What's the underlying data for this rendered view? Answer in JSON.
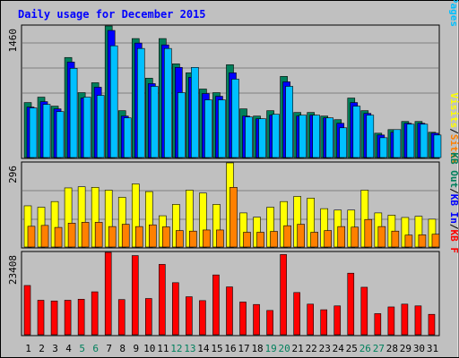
{
  "chart_data": {
    "type": "bar",
    "title": "Daily usage for December 2015",
    "days": [
      "1",
      "2",
      "3",
      "4",
      "5",
      "6",
      "7",
      "8",
      "9",
      "10",
      "11",
      "12",
      "13",
      "14",
      "15",
      "16",
      "17",
      "18",
      "19",
      "20",
      "21",
      "22",
      "23",
      "24",
      "25",
      "26",
      "27",
      "28",
      "29",
      "30",
      "31"
    ],
    "weekend_days": [
      "5",
      "6",
      "12",
      "13",
      "19",
      "20",
      "26",
      "27"
    ],
    "panels": {
      "requests": {
        "ymax_label": "1460",
        "ymax": 1460,
        "legend": [
          "Pages",
          "Files",
          "Hits"
        ],
        "separator": "/",
        "colors": {
          "Hits": "#00805c",
          "Files": "#0000ff",
          "Pages": "#00c0ff"
        },
        "series": {
          "Hits": [
            610,
            670,
            570,
            1110,
            720,
            830,
            1460,
            520,
            1320,
            880,
            1320,
            1040,
            940,
            760,
            720,
            1030,
            540,
            460,
            520,
            900,
            500,
            500,
            460,
            420,
            660,
            520,
            270,
            310,
            400,
            400,
            280
          ],
          "Files": [
            560,
            620,
            540,
            1060,
            660,
            780,
            1410,
            460,
            1270,
            820,
            1250,
            1000,
            890,
            710,
            680,
            940,
            460,
            430,
            470,
            840,
            460,
            470,
            440,
            380,
            610,
            490,
            250,
            280,
            380,
            380,
            270
          ],
          "Pages": [
            550,
            590,
            510,
            990,
            670,
            690,
            1240,
            440,
            1210,
            790,
            1210,
            720,
            1000,
            640,
            640,
            870,
            450,
            430,
            480,
            790,
            470,
            470,
            440,
            330,
            570,
            470,
            220,
            310,
            370,
            370,
            250
          ]
        }
      },
      "sites": {
        "ymax_label": "296",
        "ymax": 296,
        "legend": [
          "Sites",
          "Visits"
        ],
        "separator": "/",
        "colors": {
          "Visits": "#ffff00",
          "Sites": "#ff8000"
        },
        "series": {
          "Visits": [
            145,
            140,
            160,
            208,
            212,
            210,
            200,
            175,
            222,
            195,
            110,
            150,
            200,
            190,
            150,
            296,
            120,
            105,
            140,
            160,
            178,
            172,
            135,
            130,
            130,
            200,
            120,
            112,
            104,
            108,
            98
          ],
          "Sites": [
            73,
            76,
            69,
            84,
            87,
            87,
            72,
            80,
            72,
            78,
            71,
            58,
            56,
            60,
            60,
            210,
            52,
            52,
            55,
            75,
            80,
            52,
            58,
            72,
            70,
            97,
            72,
            56,
            42,
            43,
            45
          ]
        }
      },
      "kbytes": {
        "ymax_label": "23408",
        "ymax": 23408,
        "legend": [
          "KB F",
          "KB In",
          "KB Out"
        ],
        "separator": "/",
        "colors": {
          "KB F": "#ff0000",
          "KB In": "#0000ff",
          "KB Out": "#00805c"
        },
        "series": {
          "KB F": [
            14000,
            9800,
            9600,
            9800,
            10100,
            12200,
            23408,
            10000,
            22500,
            10300,
            20000,
            14800,
            10800,
            9700,
            17000,
            13600,
            9300,
            8600,
            6900,
            22800,
            12000,
            8700,
            7100,
            8200,
            17500,
            13500,
            6000,
            7900,
            8700,
            8200,
            5800
          ]
        }
      }
    }
  }
}
